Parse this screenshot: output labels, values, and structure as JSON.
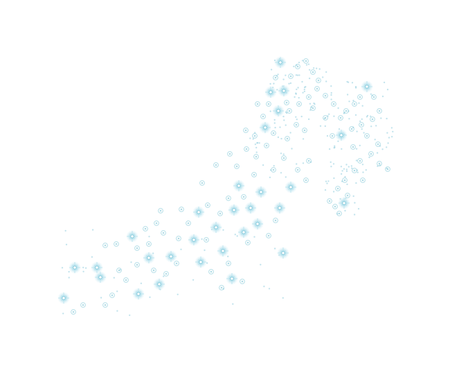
{
  "map": {
    "background_color": "#ffffff",
    "marker_color": "#7cc4d6",
    "marker_glow_color": "#b9e3ee",
    "marker_icon": "sparkle-icon",
    "labels": []
  }
}
